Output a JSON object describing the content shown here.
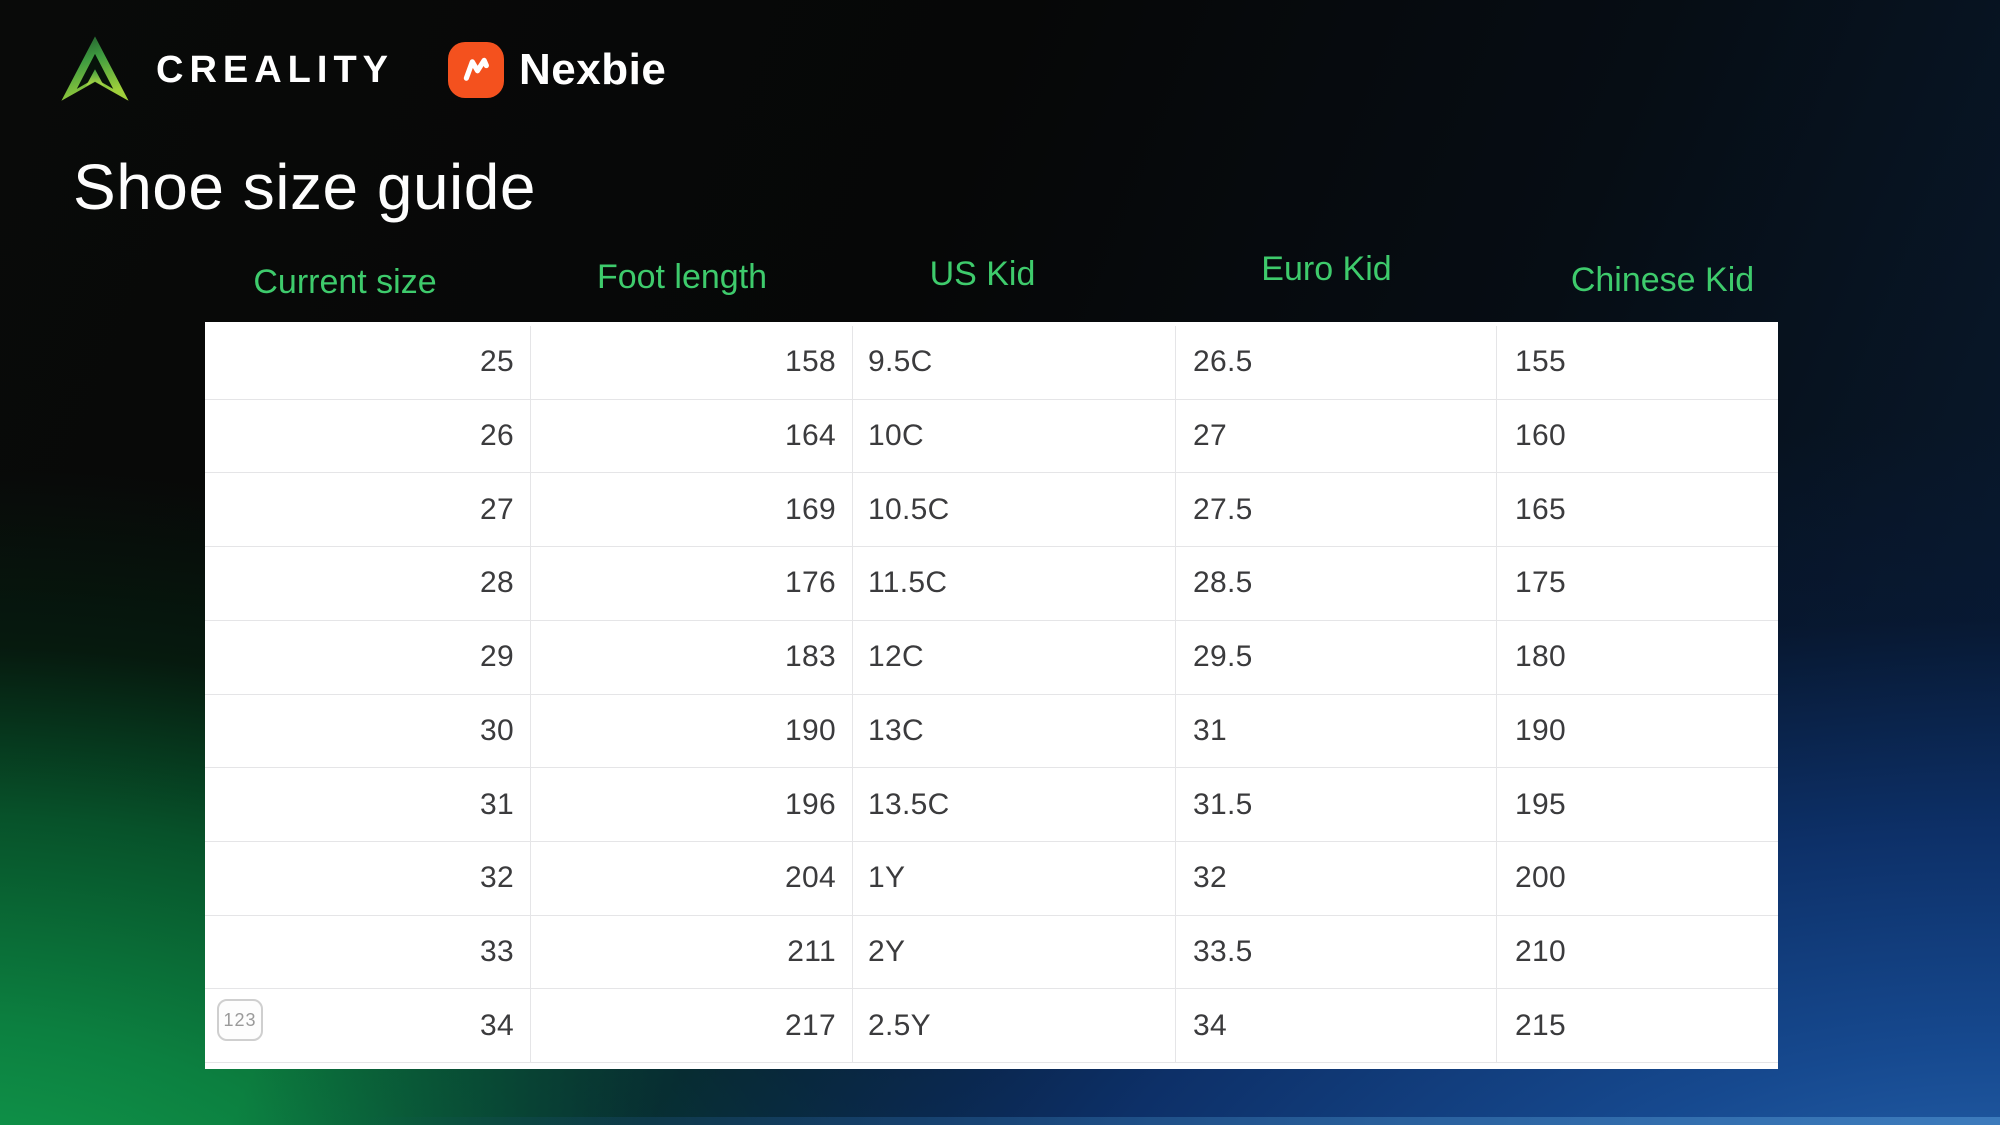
{
  "brand": {
    "creality": "CREALITY",
    "nexbie": "Nexbie"
  },
  "page": {
    "title": "Shoe size guide"
  },
  "table": {
    "headers": [
      "Current size",
      "Foot length",
      "US Kid",
      "Euro Kid",
      "Chinese Kid"
    ],
    "rows": [
      [
        "25",
        "158",
        "9.5C",
        "26.5",
        "155"
      ],
      [
        "26",
        "164",
        "10C",
        "27",
        "160"
      ],
      [
        "27",
        "169",
        "10.5C",
        "27.5",
        "165"
      ],
      [
        "28",
        "176",
        "11.5C",
        "28.5",
        "175"
      ],
      [
        "29",
        "183",
        "12C",
        "29.5",
        "180"
      ],
      [
        "30",
        "190",
        "13C",
        "31",
        "190"
      ],
      [
        "31",
        "196",
        "13.5C",
        "31.5",
        "195"
      ],
      [
        "32",
        "204",
        "1Y",
        "32",
        "200"
      ],
      [
        "33",
        "211",
        "2Y",
        "33.5",
        "210"
      ],
      [
        "34",
        "217",
        "2.5Y",
        "34",
        "215"
      ]
    ],
    "row_type_badge": "123"
  },
  "colors": {
    "header_green": "#3ecb6c",
    "table_text": "#3b3b3d",
    "nexbie_orange": "#f4511e",
    "creality_green_dark": "#1c4f2a",
    "creality_green_light": "#9fd03b",
    "bg_green_bottom_left": "#12a551",
    "bg_blue_bottom_right": "#2a69b4"
  }
}
